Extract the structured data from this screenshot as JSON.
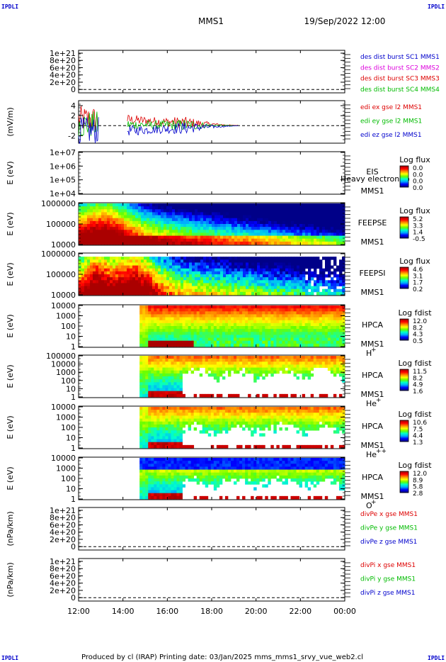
{
  "header": {
    "title": "MMS1",
    "date": "19/Sep/2022 12:00"
  },
  "corners": [
    "IPDLI",
    "IPDLI",
    "IPDLI",
    "IPDLI"
  ],
  "footer": {
    "text": "Produced by cl (IRAP)   Printing date: 03/Jan/2025   mms_mms1_srvy_vue_web2.cl"
  },
  "colors": {
    "red": "#dd0000",
    "green": "#00bb00",
    "blue": "#0000cc",
    "magenta": "#dd00dd",
    "colorbar": [
      "#000088",
      "#0000ff",
      "#00aaff",
      "#00ffcc",
      "#66ff00",
      "#ffff00",
      "#ff8800",
      "#ff0000",
      "#aa0000"
    ]
  },
  "chart_data": {
    "type": "multi-panel time series and spectrograms",
    "x_range": [
      "12:00",
      "00:00"
    ],
    "x_ticks": [
      "12:00",
      "14:00",
      "16:00",
      "18:00",
      "20:00",
      "22:00",
      "00:00"
    ],
    "panels": [
      {
        "kind": "line",
        "ylabel": "",
        "yticks": [
          "1e+21",
          "8e+20",
          "6e+20",
          "4e+20",
          "2e+20",
          "0"
        ],
        "zero_line_frac": 0.92,
        "legend": [
          {
            "label": "des dist burst SC1 MMS1",
            "color": "blue"
          },
          {
            "label": "des dist burst SC2 MMS2",
            "color": "magenta"
          },
          {
            "label": "des dist burst SC3 MMS3",
            "color": "red"
          },
          {
            "label": "des dist burst SC4 MMS4",
            "color": "green"
          }
        ]
      },
      {
        "kind": "efield",
        "ylabel": "(mV/m)",
        "yticks": [
          "4",
          "2",
          "0",
          "-2"
        ],
        "ylim": [
          -3.5,
          5
        ],
        "legend": [
          {
            "label": "edi ex gse l2 MMS1",
            "color": "red"
          },
          {
            "label": "edi ey gse l2 MMS1",
            "color": "green"
          },
          {
            "label": "edi ez gse l2 MMS1",
            "color": "blue"
          }
        ],
        "segments": [
          {
            "start_hour": 12.0,
            "end_hour": 12.9,
            "amplitude": 2.5
          },
          {
            "start_hour": 14.2,
            "end_hour": 19.2,
            "amplitude": 1.8
          }
        ]
      },
      {
        "kind": "spectrogram",
        "ylabel": "E (eV)",
        "yticks": [
          "1e+07",
          "1e+06",
          "1e+05",
          "1e+04"
        ],
        "labels": [
          "EIS",
          "MMS1"
        ],
        "overlay": "Heavy electron to",
        "cb_title": "Log flux",
        "cb_values": [
          "0.0",
          "0.0",
          "0.0",
          "0.0"
        ],
        "pattern": "empty"
      },
      {
        "kind": "spectrogram",
        "ylabel": "E (eV)",
        "yticks": [
          "1000000",
          "100000",
          "10000"
        ],
        "labels": [
          "FEEPSE",
          "MMS1"
        ],
        "cb_title": "Log flux",
        "cb_values": [
          "5.2",
          "3.3",
          "1.4",
          "-0.5"
        ],
        "pattern": "feepse",
        "start_hour": 12.0
      },
      {
        "kind": "spectrogram",
        "ylabel": "E (eV)",
        "yticks": [
          "1000000",
          "100000",
          "10000"
        ],
        "labels": [
          "FEEPSI",
          "MMS1"
        ],
        "cb_title": "Log flux",
        "cb_values": [
          "4.6",
          "3.1",
          "1.7",
          "0.2"
        ],
        "pattern": "feepsi",
        "start_hour": 12.0
      },
      {
        "kind": "spectrogram",
        "ylabel": "E (eV)",
        "yticks": [
          "10000",
          "1000",
          "100",
          "10",
          "1"
        ],
        "labels": [
          "HPCA",
          "MMS1"
        ],
        "species": "H",
        "charge": "+",
        "cb_title": "Log fdist",
        "cb_values": [
          "12.0",
          "8.2",
          "4.3",
          "0.5"
        ],
        "pattern": "hpca-h",
        "start_hour": 14.75
      },
      {
        "kind": "spectrogram",
        "ylabel": "E (eV)",
        "yticks": [
          "100000",
          "10000",
          "1000",
          "100",
          "10",
          "1"
        ],
        "labels": [
          "HPCA",
          "MMS1"
        ],
        "species": "He",
        "charge": "+",
        "cb_title": "Log fdist",
        "cb_values": [
          "11.5",
          "8.2",
          "4.9",
          "1.6"
        ],
        "pattern": "hpca-he",
        "start_hour": 14.75
      },
      {
        "kind": "spectrogram",
        "ylabel": "E (eV)",
        "yticks": [
          "10000",
          "1000",
          "100",
          "10",
          "1"
        ],
        "labels": [
          "HPCA",
          "MMS1"
        ],
        "species": "He",
        "charge": "++",
        "cb_title": "Log fdist",
        "cb_values": [
          "10.6",
          "7.5",
          "4.4",
          "1.3"
        ],
        "pattern": "hpca-he2",
        "start_hour": 14.75
      },
      {
        "kind": "spectrogram",
        "ylabel": "E (eV)",
        "yticks": [
          "10000",
          "1000",
          "100",
          "10",
          "1"
        ],
        "labels": [
          "HPCA",
          "MMS1"
        ],
        "species": "O",
        "charge": "+",
        "cb_title": "Log fdist",
        "cb_values": [
          "12.0",
          "8.9",
          "5.8",
          "2.8"
        ],
        "pattern": "hpca-o",
        "start_hour": 14.75
      },
      {
        "kind": "line",
        "ylabel": "(nPa/km)",
        "yticks": [
          "1e+21",
          "8e+20",
          "6e+20",
          "4e+20",
          "2e+20",
          "0"
        ],
        "zero_line_frac": 0.92,
        "legend": [
          {
            "label": "divPe x gse MMS1",
            "color": "red"
          },
          {
            "label": "divPe y gse MMS1",
            "color": "green"
          },
          {
            "label": "divPe z gse MMS1",
            "color": "blue"
          }
        ]
      },
      {
        "kind": "line",
        "ylabel": "(nPa/km)",
        "yticks": [
          "1e+21",
          "8e+20",
          "6e+20",
          "4e+20",
          "2e+20",
          "0"
        ],
        "zero_line_frac": 0.92,
        "legend": [
          {
            "label": "divPi x gse MMS1",
            "color": "red"
          },
          {
            "label": "divPi y gse MMS1",
            "color": "green"
          },
          {
            "label": "divPi z gse MMS1",
            "color": "blue"
          }
        ]
      }
    ]
  }
}
